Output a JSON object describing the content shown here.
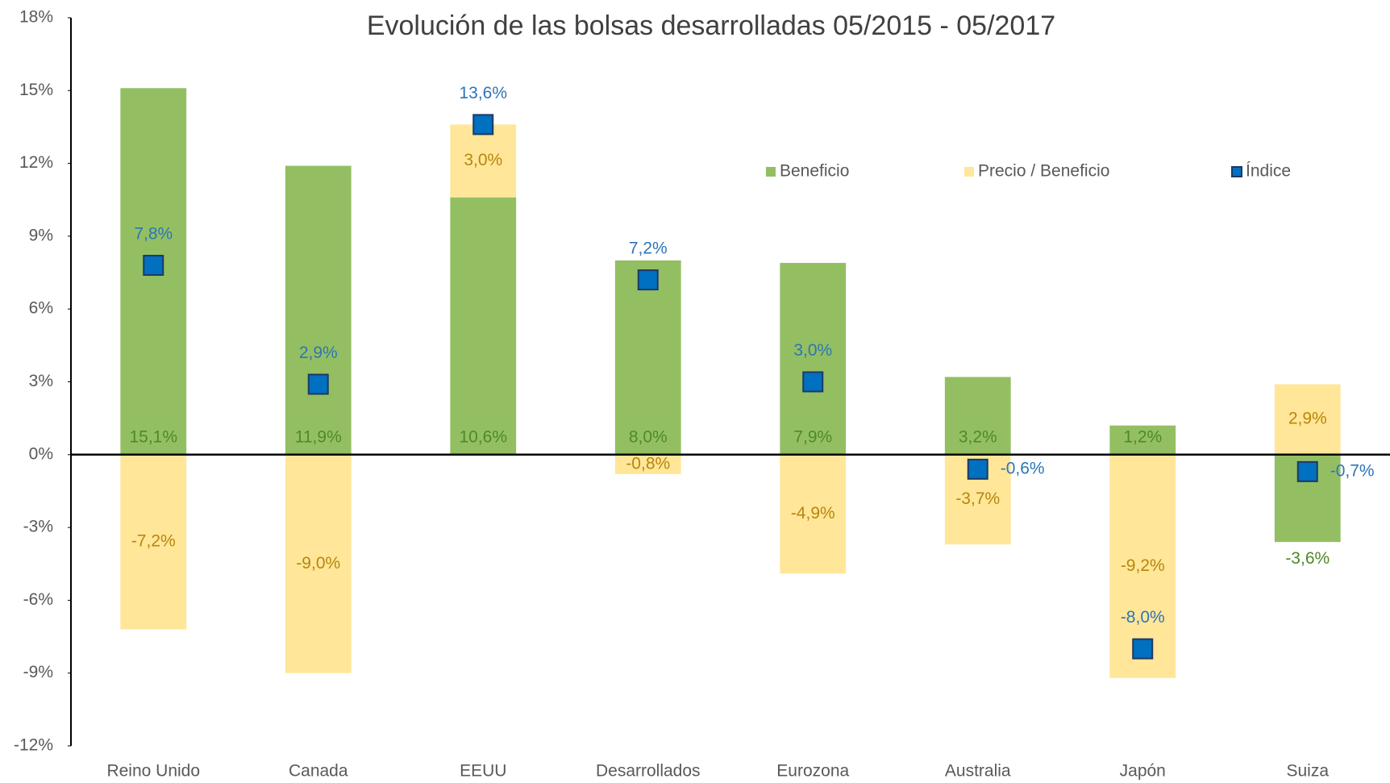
{
  "chart_data": {
    "type": "stacked_bar_with_markers",
    "title": "Evolución de las bolsas desarrolladas 05/2015 - 05/2017",
    "categories": [
      "Reino Unido",
      "Canada",
      "EEUU",
      "Desarrollados",
      "Eurozona",
      "Australia",
      "Japón",
      "Suiza"
    ],
    "series": [
      {
        "name": "Beneficio",
        "color": "#93bf62",
        "label_color": "#4e8a25",
        "kind": "bar",
        "values": [
          15.1,
          11.9,
          10.6,
          8.0,
          7.9,
          3.2,
          1.2,
          -3.6
        ],
        "value_labels": [
          "15,1%",
          "11,9%",
          "10,6%",
          "8,0%",
          "7,9%",
          "3,2%",
          "1,2%",
          "-3,6%"
        ]
      },
      {
        "name": "Precio / Beneficio",
        "color": "#ffe699",
        "label_color": "#b8860b",
        "kind": "bar",
        "values": [
          -7.2,
          -9.0,
          3.0,
          -0.8,
          -4.9,
          -3.7,
          -9.2,
          2.9
        ],
        "value_labels": [
          "-7,2%",
          "-9,0%",
          "3,0%",
          "-0,8%",
          "-4,9%",
          "-3,7%",
          "-9,2%",
          "2,9%"
        ]
      },
      {
        "name": "Índice",
        "color": "#0070c0",
        "label_color": "#2e75b6",
        "kind": "marker",
        "values": [
          7.8,
          2.9,
          13.6,
          7.2,
          3.0,
          -0.6,
          -8.0,
          -0.7
        ],
        "value_labels": [
          "7,8%",
          "2,9%",
          "13,6%",
          "7,2%",
          "3,0%",
          "-0,6%",
          "-8,0%",
          "-0,7%"
        ]
      }
    ],
    "ylim": [
      -12,
      18
    ],
    "yticks": [
      {
        "value": -12,
        "label": "-12%"
      },
      {
        "value": -9,
        "label": "-9%"
      },
      {
        "value": -6,
        "label": "-6%"
      },
      {
        "value": -3,
        "label": "-3%"
      },
      {
        "value": 0,
        "label": "0%"
      },
      {
        "value": 3,
        "label": "3%"
      },
      {
        "value": 6,
        "label": "6%"
      },
      {
        "value": 9,
        "label": "9%"
      },
      {
        "value": 12,
        "label": "12%"
      },
      {
        "value": 15,
        "label": "15%"
      },
      {
        "value": 18,
        "label": "18%"
      }
    ],
    "grid": false,
    "legend": "upper right"
  }
}
